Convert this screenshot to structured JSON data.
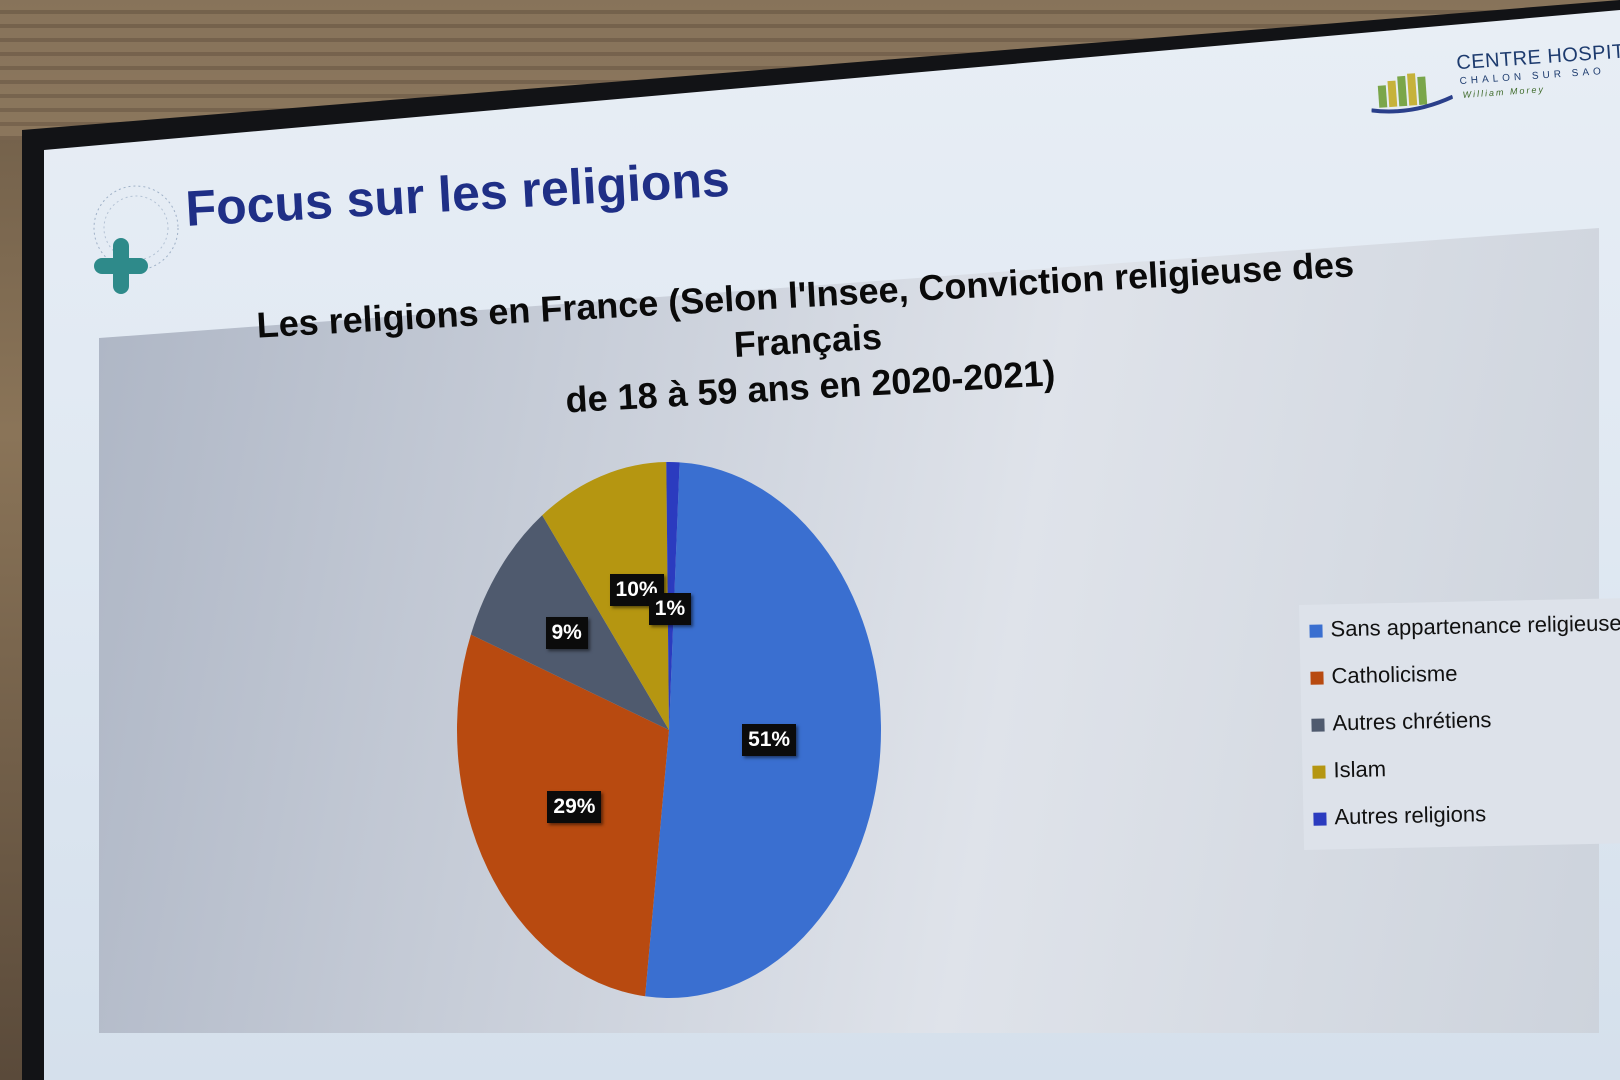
{
  "slide": {
    "title": "Focus sur les religions",
    "brand_title": "CENTRE HOSPITALI",
    "brand_sub": "CHALON SUR SAO",
    "brand_sub2": "William Morey"
  },
  "chart_data": {
    "type": "pie",
    "title_line1": "Les religions en France (Selon l'Insee, Conviction religieuse des Français",
    "title_line2": "de 18 à 59 ans en 2020-2021)",
    "categories": [
      "Sans appartenance religieuse",
      "Catholicisme",
      "Autres chrétiens",
      "Islam",
      "Autres religions"
    ],
    "values": [
      51,
      29,
      9,
      10,
      1
    ],
    "value_labels": [
      "51%",
      "29%",
      "9%",
      "10%",
      "1%"
    ],
    "colors": [
      "#3a6fd0",
      "#b84a10",
      "#4f5a6e",
      "#b59611",
      "#2b3bbf"
    ],
    "legend_position": "right"
  }
}
